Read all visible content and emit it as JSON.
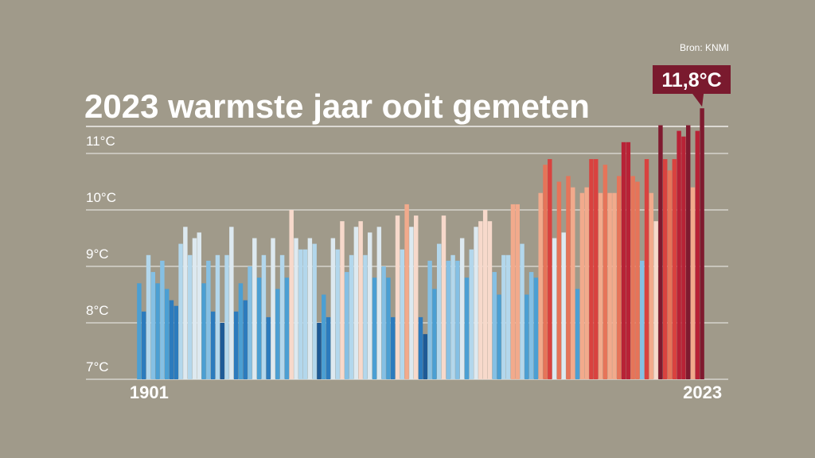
{
  "chart_data": {
    "type": "bar",
    "title": "2023 warmste jaar ooit gemeten",
    "source": "Bron: KNMI",
    "categories": [
      "1901",
      null,
      null,
      null,
      null,
      null,
      null,
      null,
      null,
      null,
      null,
      null,
      null,
      null,
      null,
      null,
      null,
      null,
      null,
      null,
      null,
      null,
      null,
      null,
      null,
      null,
      null,
      null,
      null,
      null,
      null,
      null,
      null,
      null,
      null,
      null,
      null,
      null,
      null,
      null,
      null,
      null,
      null,
      null,
      null,
      null,
      null,
      null,
      null,
      null,
      null,
      null,
      null,
      null,
      null,
      null,
      null,
      null,
      null,
      null,
      null,
      null,
      null,
      null,
      null,
      null,
      null,
      null,
      null,
      null,
      null,
      null,
      null,
      null,
      null,
      null,
      null,
      null,
      null,
      null,
      null,
      null,
      null,
      null,
      null,
      null,
      null,
      null,
      null,
      null,
      null,
      null,
      null,
      null,
      null,
      null,
      null,
      null,
      null,
      null,
      null,
      null,
      null,
      null,
      null,
      null,
      null,
      null,
      null,
      null,
      null,
      null,
      null,
      null,
      null,
      null,
      null,
      null,
      null,
      null,
      null,
      null,
      "2023"
    ],
    "values": [
      8.7,
      8.2,
      9.2,
      8.9,
      8.7,
      9.1,
      8.6,
      8.4,
      8.3,
      9.4,
      9.7,
      9.2,
      9.5,
      9.6,
      8.7,
      9.1,
      8.2,
      9.2,
      8.0,
      9.2,
      9.7,
      8.2,
      8.7,
      8.4,
      9.0,
      9.5,
      8.8,
      9.2,
      8.1,
      9.5,
      8.6,
      9.2,
      8.8,
      10.0,
      9.5,
      9.3,
      9.3,
      9.5,
      9.4,
      8.0,
      8.5,
      8.1,
      9.5,
      9.3,
      9.8,
      8.9,
      9.2,
      9.7,
      9.8,
      9.2,
      9.6,
      8.8,
      9.7,
      9.0,
      8.8,
      8.1,
      9.9,
      9.3,
      10.1,
      9.7,
      9.9,
      8.1,
      7.8,
      9.1,
      8.6,
      9.4,
      9.9,
      9.1,
      9.2,
      9.1,
      9.5,
      8.8,
      9.3,
      9.7,
      9.8,
      10.0,
      9.8,
      8.9,
      8.5,
      9.2,
      9.2,
      10.1,
      10.1,
      9.4,
      8.5,
      8.9,
      8.8,
      10.3,
      10.8,
      10.9,
      9.5,
      10.5,
      9.6,
      10.6,
      10.4,
      8.6,
      10.3,
      10.4,
      10.9,
      10.9,
      10.3,
      10.8,
      10.3,
      10.3,
      10.6,
      11.2,
      11.2,
      10.6,
      10.5,
      9.1,
      10.9,
      10.3,
      9.8,
      11.5,
      10.9,
      10.7,
      10.9,
      11.4,
      11.3,
      11.5,
      10.4,
      11.4,
      11.8
    ],
    "value_labels": [
      null,
      null,
      null,
      null,
      null,
      null,
      null,
      null,
      null,
      null,
      null,
      null,
      null,
      null,
      null,
      null,
      null,
      null,
      null,
      null,
      null,
      null,
      null,
      null,
      null,
      null,
      null,
      null,
      null,
      null,
      null,
      null,
      null,
      null,
      null,
      null,
      null,
      null,
      null,
      null,
      null,
      null,
      null,
      null,
      null,
      null,
      null,
      null,
      null,
      null,
      null,
      null,
      null,
      null,
      null,
      null,
      null,
      null,
      null,
      null,
      null,
      null,
      null,
      null,
      null,
      null,
      null,
      null,
      null,
      null,
      null,
      null,
      null,
      null,
      null,
      null,
      null,
      null,
      null,
      null,
      null,
      null,
      null,
      null,
      null,
      null,
      null,
      null,
      null,
      null,
      null,
      null,
      null,
      null,
      null,
      null,
      null,
      null,
      null,
      null,
      null,
      null,
      null,
      null,
      null,
      null,
      null,
      null,
      null,
      null,
      null,
      null,
      null,
      null,
      null,
      null,
      null,
      null,
      null,
      null,
      null,
      null,
      "11,8°C"
    ],
    "colors": [
      "#4b9fd3",
      "#2c7bbd",
      "#b3d7ec",
      "#85c0e4",
      "#4b9fd3",
      "#85c0e4",
      "#4b9fd3",
      "#2c7bbd",
      "#2c7bbd",
      "#b3d7ec",
      "#dde9f0",
      "#b3d7ec",
      "#dde9f0",
      "#dde9f0",
      "#4b9fd3",
      "#85c0e4",
      "#2c7bbd",
      "#b3d7ec",
      "#1d5a96",
      "#b3d7ec",
      "#dde9f0",
      "#2c7bbd",
      "#4b9fd3",
      "#2c7bbd",
      "#85c0e4",
      "#dde9f0",
      "#4b9fd3",
      "#b3d7ec",
      "#2c7bbd",
      "#dde9f0",
      "#4b9fd3",
      "#b3d7ec",
      "#4b9fd3",
      "#f7d9cb",
      "#dde9f0",
      "#b3d7ec",
      "#b3d7ec",
      "#dde9f0",
      "#b3d7ec",
      "#1d5a96",
      "#4b9fd3",
      "#2c7bbd",
      "#dde9f0",
      "#b3d7ec",
      "#f7d9cb",
      "#85c0e4",
      "#b3d7ec",
      "#dde9f0",
      "#f7d9cb",
      "#b3d7ec",
      "#dde9f0",
      "#4b9fd3",
      "#dde9f0",
      "#85c0e4",
      "#4b9fd3",
      "#2c7bbd",
      "#f7d9cb",
      "#b3d7ec",
      "#f2aa8c",
      "#dde9f0",
      "#f7d9cb",
      "#2c7bbd",
      "#1d5a96",
      "#85c0e4",
      "#4b9fd3",
      "#b3d7ec",
      "#f7d9cb",
      "#85c0e4",
      "#b3d7ec",
      "#85c0e4",
      "#dde9f0",
      "#4b9fd3",
      "#b3d7ec",
      "#dde9f0",
      "#f7d9cb",
      "#f7d9cb",
      "#f7d9cb",
      "#85c0e4",
      "#4b9fd3",
      "#b3d7ec",
      "#b3d7ec",
      "#f2aa8c",
      "#f2aa8c",
      "#b3d7ec",
      "#4b9fd3",
      "#85c0e4",
      "#4b9fd3",
      "#f2aa8c",
      "#e67459",
      "#d9423f",
      "#dde9f0",
      "#e67459",
      "#dde9f0",
      "#e67459",
      "#f2aa8c",
      "#4b9fd3",
      "#f2aa8c",
      "#f2aa8c",
      "#d9423f",
      "#d9423f",
      "#f2aa8c",
      "#e67459",
      "#f2aa8c",
      "#f2aa8c",
      "#e67459",
      "#b82236",
      "#b82236",
      "#e67459",
      "#e67459",
      "#85c0e4",
      "#d9423f",
      "#f2aa8c",
      "#f7d9cb",
      "#7f1a2f",
      "#d9423f",
      "#e67459",
      "#d9423f",
      "#b82236",
      "#b82236",
      "#7f1a2f",
      "#f2aa8c",
      "#b82236",
      "#7f1a2f"
    ],
    "ylim": [
      7,
      12
    ],
    "yticks": [
      {
        "value": 7,
        "label": "7°C"
      },
      {
        "value": 8,
        "label": "8°C"
      },
      {
        "value": 9,
        "label": "9°C"
      },
      {
        "value": 10,
        "label": "10°C"
      },
      {
        "value": 11,
        "label": "11°C"
      }
    ],
    "grid": true
  }
}
